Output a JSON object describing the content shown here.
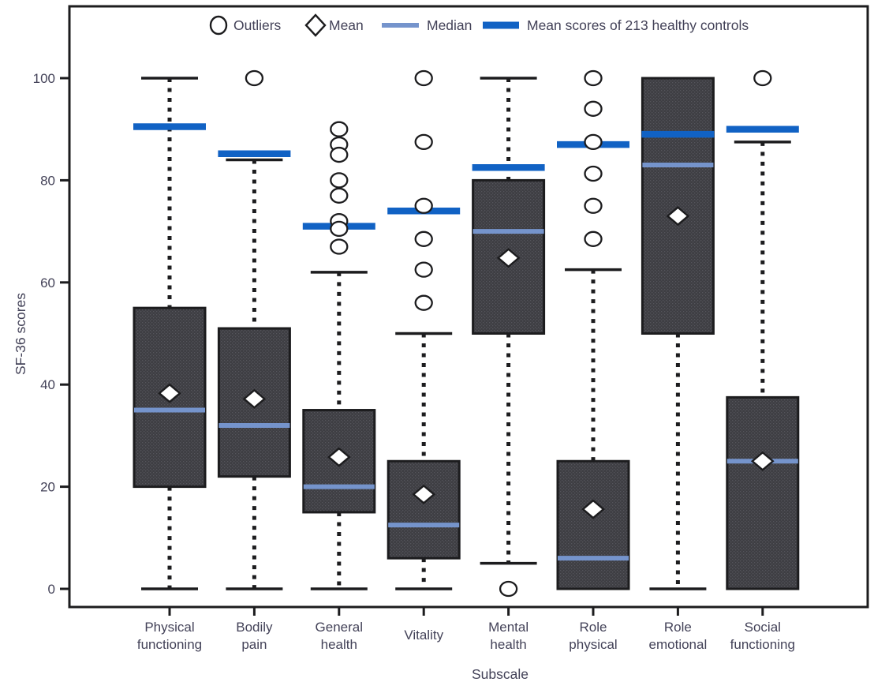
{
  "figure": {
    "ylabel": "SF-36 scores",
    "xlabel": "Subscale"
  },
  "chart_data": {
    "type": "box",
    "title": "",
    "ylabel": "SF-36 scores",
    "xlabel": "Subscale",
    "ylim": [
      0,
      113
    ],
    "yticks": [
      0,
      20,
      40,
      60,
      80,
      100
    ],
    "grid": false,
    "legend_position": "top-inside",
    "legend": [
      {
        "marker": "circle",
        "label": "Outliers"
      },
      {
        "marker": "diamond",
        "label": "Mean"
      },
      {
        "marker": "median-line",
        "label": "Median"
      },
      {
        "marker": "thick-line",
        "label": "Mean scores of  213 healthy controls"
      }
    ],
    "colors": {
      "box_fill": "#3e3e43",
      "box_dot": "#55555c",
      "line_black": "#1c1c1e",
      "median": "#7594cc",
      "healthy": "#1162c4",
      "marker_fill": "#ffffff",
      "text": "#434258"
    },
    "series": [
      {
        "category": "Physical functioning",
        "label_lines": [
          "Physical",
          "functioning"
        ],
        "whisker_low": 0,
        "q1": 20,
        "median": 35,
        "q3": 55,
        "whisker_high": 100,
        "mean": 38.3,
        "healthy_mean": 90.5,
        "outliers": []
      },
      {
        "category": "Bodily pain",
        "label_lines": [
          "Bodily",
          "pain"
        ],
        "whisker_low": 0,
        "q1": 22,
        "median": 32,
        "q3": 51,
        "whisker_high": 84,
        "mean": 37.2,
        "healthy_mean": 85.2,
        "outliers": [
          100
        ]
      },
      {
        "category": "General health",
        "label_lines": [
          "General",
          "health"
        ],
        "whisker_low": 0,
        "q1": 15,
        "median": 20,
        "q3": 35,
        "whisker_high": 62,
        "mean": 25.8,
        "healthy_mean": 71,
        "outliers": [
          90,
          87,
          85,
          80,
          77,
          72,
          70.5,
          67
        ]
      },
      {
        "category": "Vitality",
        "label_lines": [
          "Vitality"
        ],
        "whisker_low": 0,
        "q1": 6,
        "median": 12.5,
        "q3": 25,
        "whisker_high": 50,
        "mean": 18.5,
        "healthy_mean": 74,
        "outliers": [
          100,
          87.5,
          75,
          68.5,
          62.5,
          56
        ]
      },
      {
        "category": "Mental health",
        "label_lines": [
          "Mental",
          "health"
        ],
        "whisker_low": 5,
        "q1": 50,
        "median": 70,
        "q3": 80,
        "whisker_high": 100,
        "mean": 64.8,
        "healthy_mean": 82.5,
        "outliers": [
          0
        ]
      },
      {
        "category": "Role physical",
        "label_lines": [
          "Role",
          "physical"
        ],
        "whisker_low": null,
        "q1": 0,
        "median": 6,
        "q3": 25,
        "whisker_high": 62.5,
        "mean": 15.6,
        "healthy_mean": 87,
        "outliers": [
          100,
          94,
          87.5,
          81.3,
          75,
          68.5
        ]
      },
      {
        "category": "Role emotional",
        "label_lines": [
          "Role",
          "emotional"
        ],
        "whisker_low": 0,
        "q1": 50,
        "median": 83,
        "q3": 100,
        "whisker_high": null,
        "mean": 73,
        "healthy_mean": 89,
        "outliers": []
      },
      {
        "category": "Social functioning",
        "label_lines": [
          "Social",
          "functioning"
        ],
        "whisker_low": null,
        "q1": 0,
        "median": 25,
        "q3": 37.5,
        "whisker_high": 87.5,
        "mean": 25,
        "healthy_mean": 90,
        "outliers": [
          100
        ]
      }
    ]
  }
}
